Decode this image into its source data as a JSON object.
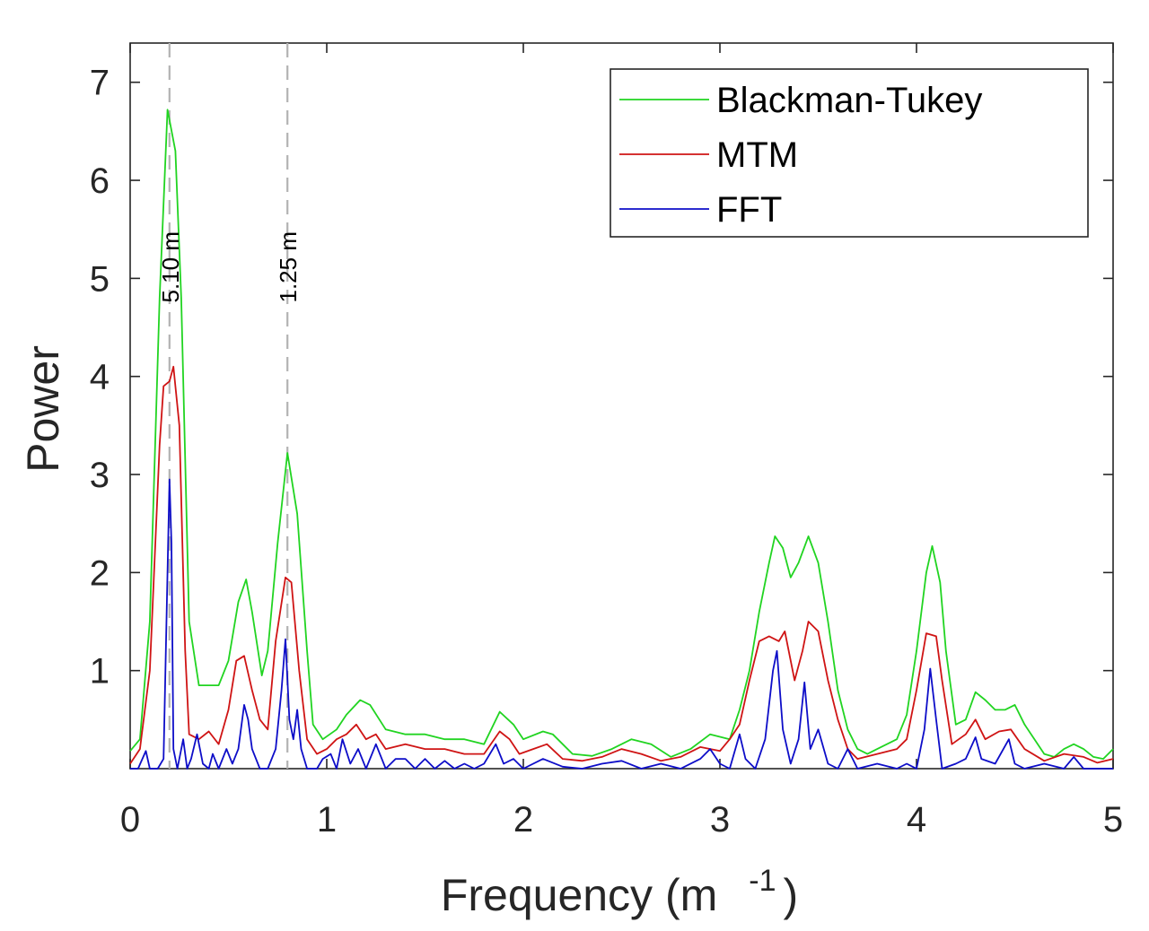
{
  "chart_data": {
    "type": "line",
    "title": "",
    "xlabel": "Frequency (m",
    "xlabel_superscript": "-1",
    "xlabel_close": ")",
    "ylabel": "Power",
    "xlim": [
      0,
      5
    ],
    "ylim": [
      0,
      7.4
    ],
    "xticks": [
      0,
      1,
      2,
      3,
      4,
      5
    ],
    "xtick_labels": [
      "0",
      "1",
      "2",
      "3",
      "4",
      "5"
    ],
    "yticks": [
      1,
      2,
      3,
      4,
      5,
      6,
      7
    ],
    "ytick_labels": [
      "1",
      "2",
      "3",
      "4",
      "5",
      "6",
      "7"
    ],
    "grid": false,
    "legend_position": "top-right",
    "annotations": [
      {
        "x": 0.2,
        "label": "5.10 m",
        "style": "dashed-vertical"
      },
      {
        "x": 0.8,
        "label": "1.25 m",
        "style": "dashed-vertical"
      }
    ],
    "series": [
      {
        "name": "Blackman-Tukey",
        "color": "#21d421",
        "points": [
          [
            0,
            0.18
          ],
          [
            0.05,
            0.3
          ],
          [
            0.1,
            1.5
          ],
          [
            0.15,
            4.8
          ],
          [
            0.19,
            6.72
          ],
          [
            0.23,
            6.3
          ],
          [
            0.26,
            4.8
          ],
          [
            0.3,
            1.5
          ],
          [
            0.35,
            0.85
          ],
          [
            0.45,
            0.85
          ],
          [
            0.5,
            1.1
          ],
          [
            0.55,
            1.7
          ],
          [
            0.59,
            1.93
          ],
          [
            0.62,
            1.6
          ],
          [
            0.67,
            0.95
          ],
          [
            0.7,
            1.2
          ],
          [
            0.75,
            2.3
          ],
          [
            0.8,
            3.22
          ],
          [
            0.85,
            2.6
          ],
          [
            0.9,
            1.2
          ],
          [
            0.93,
            0.45
          ],
          [
            0.98,
            0.3
          ],
          [
            1.05,
            0.4
          ],
          [
            1.1,
            0.55
          ],
          [
            1.17,
            0.7
          ],
          [
            1.22,
            0.65
          ],
          [
            1.3,
            0.4
          ],
          [
            1.4,
            0.35
          ],
          [
            1.5,
            0.35
          ],
          [
            1.6,
            0.3
          ],
          [
            1.7,
            0.3
          ],
          [
            1.8,
            0.25
          ],
          [
            1.88,
            0.58
          ],
          [
            1.95,
            0.45
          ],
          [
            2.0,
            0.3
          ],
          [
            2.1,
            0.38
          ],
          [
            2.15,
            0.35
          ],
          [
            2.25,
            0.15
          ],
          [
            2.35,
            0.13
          ],
          [
            2.45,
            0.2
          ],
          [
            2.55,
            0.3
          ],
          [
            2.65,
            0.25
          ],
          [
            2.75,
            0.12
          ],
          [
            2.85,
            0.2
          ],
          [
            2.95,
            0.35
          ],
          [
            3.05,
            0.3
          ],
          [
            3.1,
            0.6
          ],
          [
            3.15,
            1.0
          ],
          [
            3.2,
            1.6
          ],
          [
            3.25,
            2.1
          ],
          [
            3.28,
            2.37
          ],
          [
            3.32,
            2.25
          ],
          [
            3.36,
            1.95
          ],
          [
            3.4,
            2.1
          ],
          [
            3.45,
            2.37
          ],
          [
            3.5,
            2.1
          ],
          [
            3.55,
            1.5
          ],
          [
            3.6,
            0.8
          ],
          [
            3.65,
            0.4
          ],
          [
            3.7,
            0.2
          ],
          [
            3.75,
            0.15
          ],
          [
            3.8,
            0.2
          ],
          [
            3.9,
            0.3
          ],
          [
            3.95,
            0.55
          ],
          [
            4.0,
            1.2
          ],
          [
            4.05,
            2.0
          ],
          [
            4.08,
            2.27
          ],
          [
            4.12,
            1.9
          ],
          [
            4.15,
            1.2
          ],
          [
            4.2,
            0.45
          ],
          [
            4.25,
            0.5
          ],
          [
            4.3,
            0.78
          ],
          [
            4.35,
            0.7
          ],
          [
            4.4,
            0.6
          ],
          [
            4.45,
            0.6
          ],
          [
            4.5,
            0.65
          ],
          [
            4.55,
            0.45
          ],
          [
            4.6,
            0.3
          ],
          [
            4.65,
            0.15
          ],
          [
            4.7,
            0.12
          ],
          [
            4.75,
            0.2
          ],
          [
            4.8,
            0.25
          ],
          [
            4.85,
            0.2
          ],
          [
            4.9,
            0.12
          ],
          [
            4.95,
            0.1
          ],
          [
            5.0,
            0.2
          ]
        ]
      },
      {
        "name": "MTM",
        "color": "#cf1414",
        "points": [
          [
            0,
            0.05
          ],
          [
            0.05,
            0.2
          ],
          [
            0.1,
            1.0
          ],
          [
            0.15,
            3.3
          ],
          [
            0.17,
            3.9
          ],
          [
            0.2,
            3.95
          ],
          [
            0.22,
            4.1
          ],
          [
            0.25,
            3.5
          ],
          [
            0.28,
            1.2
          ],
          [
            0.3,
            0.35
          ],
          [
            0.35,
            0.3
          ],
          [
            0.4,
            0.38
          ],
          [
            0.45,
            0.25
          ],
          [
            0.5,
            0.6
          ],
          [
            0.54,
            1.1
          ],
          [
            0.58,
            1.15
          ],
          [
            0.62,
            0.8
          ],
          [
            0.66,
            0.5
          ],
          [
            0.7,
            0.4
          ],
          [
            0.74,
            1.3
          ],
          [
            0.79,
            1.95
          ],
          [
            0.82,
            1.9
          ],
          [
            0.86,
            1.0
          ],
          [
            0.9,
            0.3
          ],
          [
            0.95,
            0.15
          ],
          [
            1.0,
            0.2
          ],
          [
            1.05,
            0.3
          ],
          [
            1.1,
            0.35
          ],
          [
            1.15,
            0.45
          ],
          [
            1.2,
            0.3
          ],
          [
            1.25,
            0.35
          ],
          [
            1.3,
            0.2
          ],
          [
            1.4,
            0.25
          ],
          [
            1.5,
            0.2
          ],
          [
            1.6,
            0.2
          ],
          [
            1.7,
            0.15
          ],
          [
            1.8,
            0.15
          ],
          [
            1.88,
            0.38
          ],
          [
            1.93,
            0.3
          ],
          [
            1.98,
            0.15
          ],
          [
            2.05,
            0.2
          ],
          [
            2.12,
            0.25
          ],
          [
            2.2,
            0.1
          ],
          [
            2.3,
            0.08
          ],
          [
            2.4,
            0.12
          ],
          [
            2.5,
            0.2
          ],
          [
            2.6,
            0.15
          ],
          [
            2.7,
            0.08
          ],
          [
            2.8,
            0.12
          ],
          [
            2.9,
            0.22
          ],
          [
            3.0,
            0.18
          ],
          [
            3.05,
            0.3
          ],
          [
            3.1,
            0.45
          ],
          [
            3.15,
            0.9
          ],
          [
            3.2,
            1.3
          ],
          [
            3.25,
            1.35
          ],
          [
            3.3,
            1.3
          ],
          [
            3.33,
            1.4
          ],
          [
            3.38,
            0.9
          ],
          [
            3.42,
            1.2
          ],
          [
            3.45,
            1.5
          ],
          [
            3.5,
            1.4
          ],
          [
            3.55,
            0.9
          ],
          [
            3.6,
            0.5
          ],
          [
            3.65,
            0.2
          ],
          [
            3.7,
            0.1
          ],
          [
            3.8,
            0.15
          ],
          [
            3.9,
            0.2
          ],
          [
            3.95,
            0.3
          ],
          [
            4.0,
            0.8
          ],
          [
            4.05,
            1.38
          ],
          [
            4.1,
            1.35
          ],
          [
            4.13,
            0.9
          ],
          [
            4.18,
            0.25
          ],
          [
            4.25,
            0.35
          ],
          [
            4.3,
            0.5
          ],
          [
            4.35,
            0.3
          ],
          [
            4.42,
            0.38
          ],
          [
            4.48,
            0.4
          ],
          [
            4.55,
            0.2
          ],
          [
            4.65,
            0.08
          ],
          [
            4.75,
            0.15
          ],
          [
            4.85,
            0.12
          ],
          [
            4.92,
            0.06
          ],
          [
            5.0,
            0.1
          ]
        ]
      },
      {
        "name": "FFT",
        "color": "#0d0dc8",
        "points": [
          [
            0,
            0.0
          ],
          [
            0.04,
            0.0
          ],
          [
            0.08,
            0.18
          ],
          [
            0.1,
            0.0
          ],
          [
            0.14,
            0.0
          ],
          [
            0.17,
            0.1
          ],
          [
            0.19,
            2.0
          ],
          [
            0.2,
            2.95
          ],
          [
            0.21,
            2.3
          ],
          [
            0.22,
            0.2
          ],
          [
            0.24,
            0.0
          ],
          [
            0.27,
            0.3
          ],
          [
            0.29,
            0.0
          ],
          [
            0.31,
            0.1
          ],
          [
            0.34,
            0.35
          ],
          [
            0.37,
            0.05
          ],
          [
            0.4,
            0.0
          ],
          [
            0.42,
            0.15
          ],
          [
            0.45,
            0.0
          ],
          [
            0.49,
            0.2
          ],
          [
            0.52,
            0.05
          ],
          [
            0.55,
            0.2
          ],
          [
            0.58,
            0.65
          ],
          [
            0.6,
            0.5
          ],
          [
            0.62,
            0.2
          ],
          [
            0.66,
            0.0
          ],
          [
            0.7,
            0.0
          ],
          [
            0.74,
            0.2
          ],
          [
            0.77,
            0.8
          ],
          [
            0.79,
            1.32
          ],
          [
            0.81,
            0.5
          ],
          [
            0.83,
            0.3
          ],
          [
            0.85,
            0.6
          ],
          [
            0.87,
            0.2
          ],
          [
            0.9,
            0.0
          ],
          [
            0.95,
            0.0
          ],
          [
            0.98,
            0.1
          ],
          [
            1.02,
            0.15
          ],
          [
            1.05,
            0.0
          ],
          [
            1.08,
            0.3
          ],
          [
            1.12,
            0.05
          ],
          [
            1.16,
            0.2
          ],
          [
            1.2,
            0.0
          ],
          [
            1.25,
            0.25
          ],
          [
            1.3,
            0.0
          ],
          [
            1.35,
            0.1
          ],
          [
            1.4,
            0.1
          ],
          [
            1.45,
            0.0
          ],
          [
            1.5,
            0.1
          ],
          [
            1.55,
            0.0
          ],
          [
            1.6,
            0.08
          ],
          [
            1.65,
            0.0
          ],
          [
            1.7,
            0.05
          ],
          [
            1.75,
            0.0
          ],
          [
            1.8,
            0.05
          ],
          [
            1.86,
            0.25
          ],
          [
            1.9,
            0.05
          ],
          [
            1.95,
            0.1
          ],
          [
            2.0,
            0.0
          ],
          [
            2.1,
            0.1
          ],
          [
            2.2,
            0.02
          ],
          [
            2.3,
            0.0
          ],
          [
            2.4,
            0.05
          ],
          [
            2.5,
            0.08
          ],
          [
            2.6,
            0.0
          ],
          [
            2.7,
            0.05
          ],
          [
            2.8,
            0.0
          ],
          [
            2.9,
            0.1
          ],
          [
            2.95,
            0.2
          ],
          [
            3.0,
            0.05
          ],
          [
            3.05,
            0.0
          ],
          [
            3.1,
            0.35
          ],
          [
            3.13,
            0.1
          ],
          [
            3.18,
            0.0
          ],
          [
            3.23,
            0.3
          ],
          [
            3.27,
            1.0
          ],
          [
            3.29,
            1.2
          ],
          [
            3.32,
            0.4
          ],
          [
            3.36,
            0.05
          ],
          [
            3.4,
            0.3
          ],
          [
            3.43,
            0.88
          ],
          [
            3.46,
            0.2
          ],
          [
            3.5,
            0.4
          ],
          [
            3.55,
            0.05
          ],
          [
            3.6,
            0.0
          ],
          [
            3.65,
            0.2
          ],
          [
            3.7,
            0.0
          ],
          [
            3.8,
            0.05
          ],
          [
            3.9,
            0.0
          ],
          [
            3.95,
            0.05
          ],
          [
            4.0,
            0.0
          ],
          [
            4.04,
            0.4
          ],
          [
            4.07,
            1.02
          ],
          [
            4.1,
            0.5
          ],
          [
            4.13,
            0.0
          ],
          [
            4.2,
            0.05
          ],
          [
            4.25,
            0.1
          ],
          [
            4.3,
            0.32
          ],
          [
            4.33,
            0.1
          ],
          [
            4.4,
            0.05
          ],
          [
            4.47,
            0.3
          ],
          [
            4.5,
            0.05
          ],
          [
            4.55,
            0.0
          ],
          [
            4.65,
            0.05
          ],
          [
            4.75,
            0.0
          ],
          [
            4.8,
            0.12
          ],
          [
            4.85,
            0.0
          ],
          [
            5.0,
            0.0
          ]
        ]
      }
    ]
  }
}
